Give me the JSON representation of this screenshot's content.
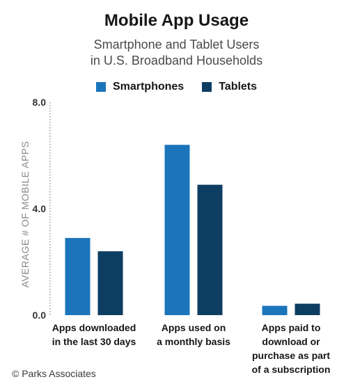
{
  "chart_data": {
    "type": "bar",
    "title": "Mobile App Usage",
    "subtitle": [
      "Smartphone and Tablet Users",
      "in U.S. Broadband Households"
    ],
    "ylabel": "AVERAGE # OF MOBILE APPS",
    "xlabel": "",
    "ylim": [
      0,
      8
    ],
    "yticks": [
      "0.0",
      "4.0",
      "8.0"
    ],
    "categories": [
      [
        "Apps downloaded",
        "in the last 30 days"
      ],
      [
        "Apps used on",
        "a monthly basis"
      ],
      [
        "Apps paid to",
        "download or",
        "purchase as part",
        "of a subscription"
      ]
    ],
    "series": [
      {
        "name": "Smartphones",
        "color": "#1b75bb",
        "values": [
          2.9,
          6.4,
          0.35
        ]
      },
      {
        "name": "Tablets",
        "color": "#0e3d62",
        "values": [
          2.4,
          4.9,
          0.43
        ]
      }
    ],
    "legend_position": "top-center",
    "grid": false
  },
  "credit": "© Parks Associates"
}
